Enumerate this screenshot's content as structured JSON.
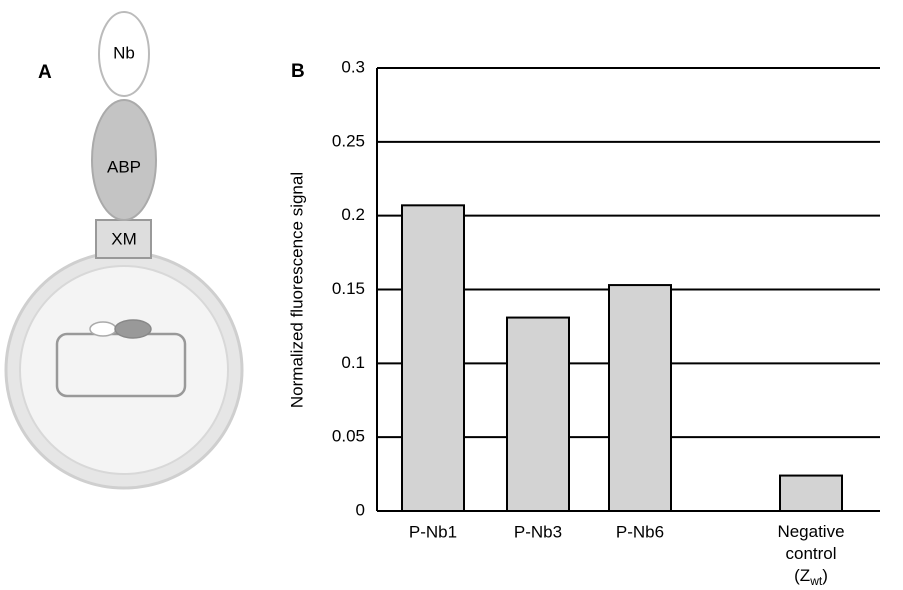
{
  "panel_labels": [
    "A",
    "B"
  ],
  "diagram": {
    "labels": [
      "Nb",
      "ABP",
      "XM"
    ]
  },
  "chart_data": {
    "type": "bar",
    "ylabel": "Normalized fluorescence signal",
    "categories": [
      "P-Nb1",
      "P-Nb3",
      "P-Nb6",
      "Negative control (Zwt)"
    ],
    "values": [
      0.207,
      0.131,
      0.153,
      0.024
    ],
    "color": "#d3d3d3",
    "ylim": [
      0,
      0.3
    ],
    "yticks": [
      0,
      0.05,
      0.1,
      0.15,
      0.2,
      0.25,
      0.3
    ],
    "grid": true
  }
}
